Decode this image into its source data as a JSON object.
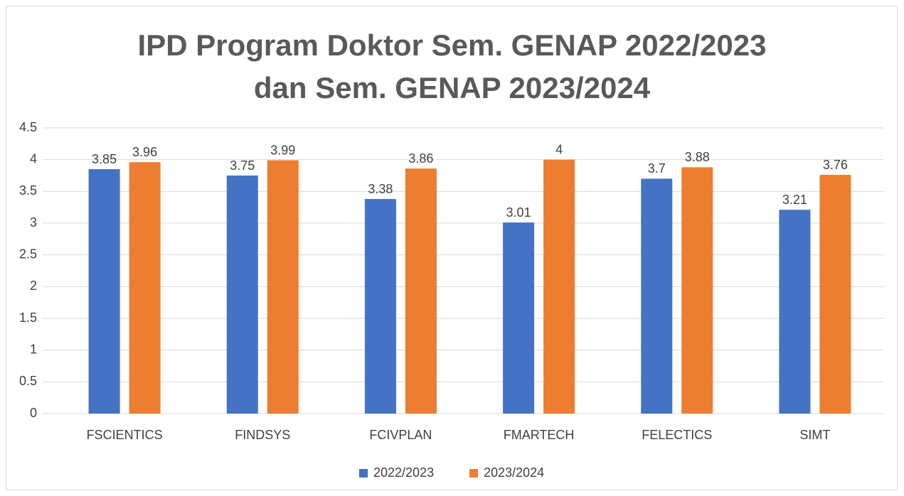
{
  "chart_data": {
    "type": "bar",
    "title": "IPD Program Doktor Sem. GENAP 2022/2023 dan Sem. GENAP 2023/2024",
    "categories": [
      "FSCIENTICS",
      "FINDSYS",
      "FCIVPLAN",
      "FMARTECH",
      "FELECTICS",
      "SIMT"
    ],
    "series": [
      {
        "name": "2022/2023",
        "color": "#4472c4",
        "values": [
          3.85,
          3.75,
          3.38,
          3.01,
          3.7,
          3.21
        ]
      },
      {
        "name": "2023/2024",
        "color": "#ed7d31",
        "values": [
          3.96,
          3.99,
          3.86,
          4,
          3.88,
          3.76
        ]
      }
    ],
    "ylim": [
      0,
      4.5
    ],
    "yticks": [
      0,
      0.5,
      1,
      1.5,
      2,
      2.5,
      3,
      3.5,
      4,
      4.5
    ],
    "grid": true,
    "legend": "bottom"
  }
}
